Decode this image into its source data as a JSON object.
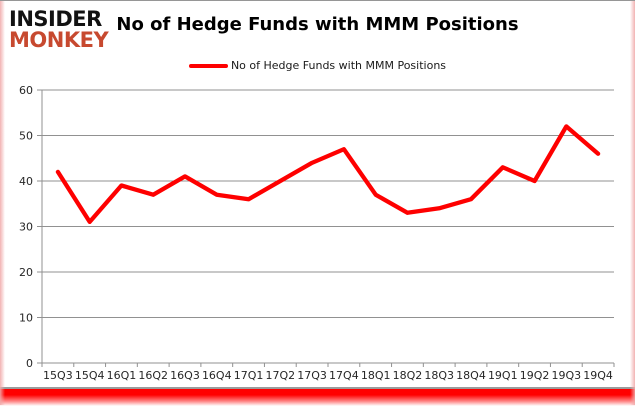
{
  "logo": {
    "line1": "INSIDER",
    "line2": "MONKEY"
  },
  "header": {
    "title": "No of Hedge Funds with MMM Positions"
  },
  "legend": {
    "label": "No of Hedge Funds with MMM Positions"
  },
  "colors": {
    "line": "#fe0000",
    "grid": "#919191",
    "axis": "#919191",
    "tick_text": "#262626",
    "logo_accent": "#c7492f",
    "bottom_glow": "#ff0000",
    "edge_glow": "#f0aaaa"
  },
  "chart_data": {
    "type": "line",
    "title": "No of Hedge Funds with MMM Positions",
    "categories": [
      "15Q3",
      "15Q4",
      "16Q1",
      "16Q2",
      "16Q3",
      "16Q4",
      "17Q1",
      "17Q2",
      "17Q3",
      "17Q4",
      "18Q1",
      "18Q2",
      "18Q3",
      "18Q4",
      "19Q1",
      "19Q2",
      "19Q3",
      "19Q4"
    ],
    "series": [
      {
        "name": "No of Hedge Funds with MMM Positions",
        "values": [
          42,
          31,
          39,
          37,
          41,
          37,
          36,
          40,
          44,
          47,
          37,
          33,
          34,
          36,
          43,
          40,
          52,
          46
        ]
      }
    ],
    "xlabel": "",
    "ylabel": "",
    "ylim": [
      0,
      60
    ],
    "ytick_interval": 10,
    "yticks": [
      0,
      10,
      20,
      30,
      40,
      50,
      60
    ],
    "grid": true,
    "legend_position": "top-center",
    "line_width": 4.3
  }
}
